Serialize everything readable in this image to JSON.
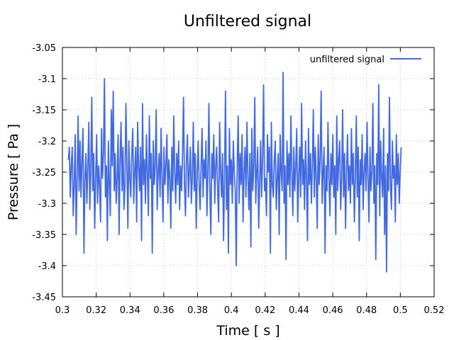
{
  "chart_data": {
    "type": "line",
    "title": "Unfiltered signal",
    "xlabel": "Time [ s ]",
    "ylabel": "Pressure [ Pa ]",
    "xlim": [
      0.3,
      0.52
    ],
    "ylim": [
      -3.45,
      -3.05
    ],
    "xticks": [
      0.3,
      0.32,
      0.34,
      0.36,
      0.38,
      0.4,
      0.42,
      0.44,
      0.46,
      0.48,
      0.5,
      0.52
    ],
    "xtick_labels": [
      "0.3",
      "0.32",
      "0.34",
      "0.36",
      "0.38",
      "0.4",
      "0.42",
      "0.44",
      "0.46",
      "0.48",
      "0.5",
      "0.52"
    ],
    "yticks": [
      -3.45,
      -3.4,
      -3.35,
      -3.3,
      -3.25,
      -3.2,
      -3.15,
      -3.1,
      -3.05
    ],
    "ytick_labels": [
      "-3.45",
      "-3.4",
      "-3.35",
      "-3.3",
      "-3.25",
      "-3.2",
      "-3.15",
      "-3.1",
      "-3.05"
    ],
    "grid": true,
    "legend_position": "top-right",
    "series": [
      {
        "name": "unfiltered signal",
        "color": "#4169e1",
        "x_start": 0.3035,
        "x_end": 0.5005,
        "y": [
          -3.23,
          -3.21,
          -3.29,
          -3.24,
          -3.21,
          -3.32,
          -3.27,
          -3.19,
          -3.35,
          -3.26,
          -3.16,
          -3.28,
          -3.2,
          -3.29,
          -3.23,
          -3.18,
          -3.38,
          -3.26,
          -3.22,
          -3.3,
          -3.24,
          -3.17,
          -3.31,
          -3.25,
          -3.13,
          -3.28,
          -3.22,
          -3.34,
          -3.26,
          -3.19,
          -3.3,
          -3.24,
          -3.27,
          -3.33,
          -3.18,
          -3.26,
          -3.22,
          -3.1,
          -3.29,
          -3.24,
          -3.36,
          -3.2,
          -3.27,
          -3.32,
          -3.15,
          -3.24,
          -3.12,
          -3.28,
          -3.22,
          -3.3,
          -3.26,
          -3.19,
          -3.35,
          -3.23,
          -3.17,
          -3.28,
          -3.21,
          -3.31,
          -3.27,
          -3.14,
          -3.24,
          -3.34,
          -3.2,
          -3.26,
          -3.29,
          -3.22,
          -3.18,
          -3.3,
          -3.25,
          -3.21,
          -3.33,
          -3.17,
          -3.24,
          -3.28,
          -3.21,
          -3.36,
          -3.14,
          -3.27,
          -3.23,
          -3.3,
          -3.19,
          -3.25,
          -3.32,
          -3.16,
          -3.26,
          -3.22,
          -3.38,
          -3.2,
          -3.27,
          -3.24,
          -3.15,
          -3.31,
          -3.25,
          -3.22,
          -3.29,
          -3.18,
          -3.26,
          -3.33,
          -3.21,
          -3.27,
          -3.24,
          -3.19,
          -3.3,
          -3.23,
          -3.26,
          -3.34,
          -3.21,
          -3.28,
          -3.16,
          -3.25,
          -3.3,
          -3.22,
          -3.27,
          -3.2,
          -3.31,
          -3.24,
          -3.28,
          -3.22,
          -3.13,
          -3.27,
          -3.32,
          -3.23,
          -3.19,
          -3.29,
          -3.25,
          -3.21,
          -3.3,
          -3.26,
          -3.17,
          -3.28,
          -3.22,
          -3.34,
          -3.25,
          -3.2,
          -3.27,
          -3.31,
          -3.24,
          -3.18,
          -3.29,
          -3.23,
          -3.26,
          -3.2,
          -3.32,
          -3.25,
          -3.14,
          -3.28,
          -3.35,
          -3.22,
          -3.26,
          -3.19,
          -3.3,
          -3.24,
          -3.21,
          -3.28,
          -3.33,
          -3.17,
          -3.25,
          -3.29,
          -3.22,
          -3.36,
          -3.26,
          -3.12,
          -3.31,
          -3.24,
          -3.38,
          -3.18,
          -3.27,
          -3.23,
          -3.3,
          -3.2,
          -3.25,
          -3.28,
          -3.4,
          -3.24,
          -3.16,
          -3.3,
          -3.22,
          -3.27,
          -3.19,
          -3.33,
          -3.25,
          -3.21,
          -3.29,
          -3.17,
          -3.26,
          -3.31,
          -3.22,
          -3.37,
          -3.18,
          -3.28,
          -3.24,
          -3.13,
          -3.3,
          -3.25,
          -3.21,
          -3.34,
          -3.27,
          -3.2,
          -3.29,
          -3.23,
          -3.11,
          -3.28,
          -3.26,
          -3.32,
          -3.19,
          -3.25,
          -3.21,
          -3.38,
          -3.17,
          -3.27,
          -3.29,
          -3.23,
          -3.2,
          -3.31,
          -3.26,
          -3.22,
          -3.35,
          -3.19,
          -3.25,
          -3.28,
          -3.09,
          -3.3,
          -3.24,
          -3.39,
          -3.2,
          -3.27,
          -3.22,
          -3.29,
          -3.16,
          -3.25,
          -3.32,
          -3.21,
          -3.28,
          -3.24,
          -3.18,
          -3.33,
          -3.26,
          -3.21,
          -3.29,
          -3.14,
          -3.27,
          -3.23,
          -3.31,
          -3.2,
          -3.26,
          -3.36,
          -3.18,
          -3.27,
          -3.22,
          -3.3,
          -3.24,
          -3.15,
          -3.29,
          -3.21,
          -3.26,
          -3.34,
          -3.19,
          -3.27,
          -3.23,
          -3.12,
          -3.3,
          -3.25,
          -3.21,
          -3.38,
          -3.24,
          -3.28,
          -3.17,
          -3.26,
          -3.32,
          -3.22,
          -3.27,
          -3.19,
          -3.29,
          -3.24,
          -3.35,
          -3.16,
          -3.28,
          -3.23,
          -3.2,
          -3.31,
          -3.26,
          -3.15,
          -3.29,
          -3.22,
          -3.34,
          -3.25,
          -3.19,
          -3.28,
          -3.24,
          -3.3,
          -3.18,
          -3.27,
          -3.22,
          -3.33,
          -3.26,
          -3.16,
          -3.29,
          -3.21,
          -3.36,
          -3.23,
          -3.27,
          -3.19,
          -3.31,
          -3.25,
          -3.22,
          -3.28,
          -3.17,
          -3.26,
          -3.33,
          -3.21,
          -3.28,
          -3.25,
          -3.14,
          -3.3,
          -3.24,
          -3.39,
          -3.22,
          -3.27,
          -3.11,
          -3.32,
          -3.2,
          -3.26,
          -3.29,
          -3.18,
          -3.35,
          -3.24,
          -3.41,
          -3.22,
          -3.28,
          -3.13,
          -3.27,
          -3.31,
          -3.2,
          -3.26,
          -3.24,
          -3.33,
          -3.19,
          -3.27,
          -3.22,
          -3.3,
          -3.25,
          -3.21
        ]
      }
    ]
  }
}
